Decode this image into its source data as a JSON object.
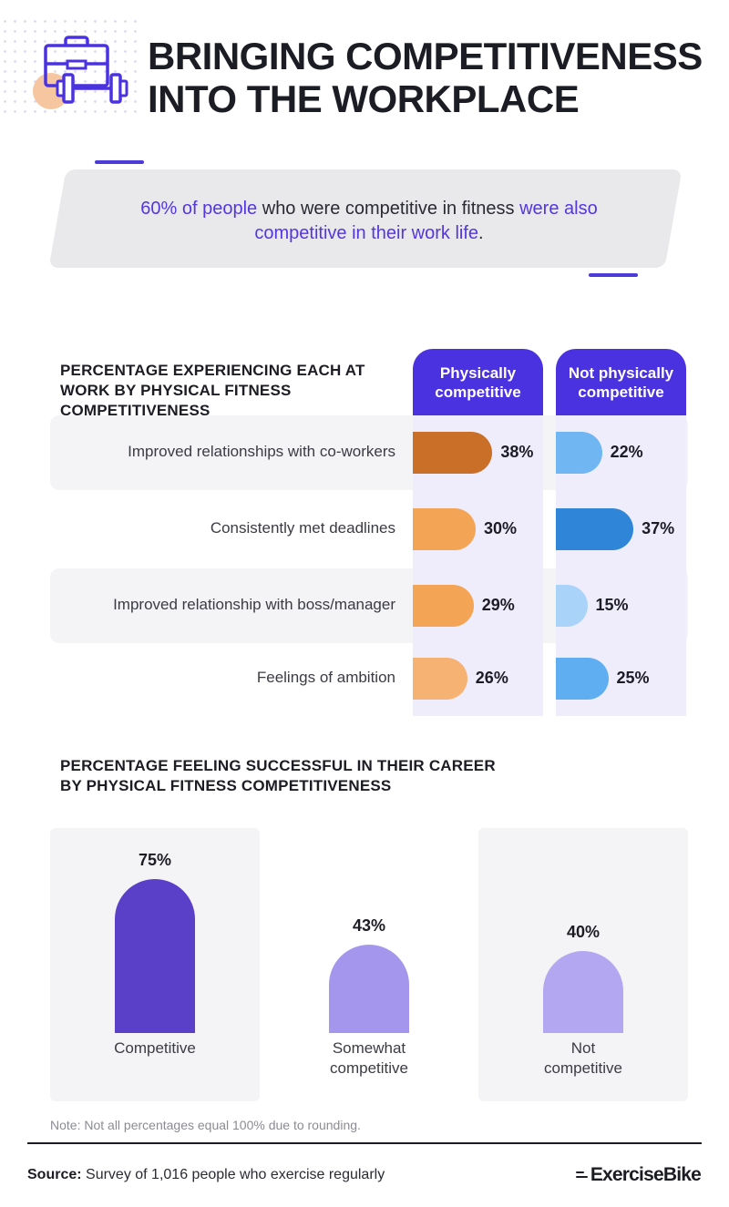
{
  "header": {
    "title": "Bringing Competitiveness Into the Workplace",
    "icon": "briefcase-dumbbell-icon",
    "accent_color": "#4a32e0"
  },
  "highlight": {
    "part1": "60% of people",
    "part2": " who were competitive in fitness ",
    "part3": "were also competitive in their work life",
    "part4": "."
  },
  "chart_data": [
    {
      "type": "bar",
      "orientation": "horizontal",
      "title": "Percentage experiencing each at work by physical fitness competitiveness",
      "categories": [
        "Improved relationships with co-workers",
        "Consistently met deadlines",
        "Improved relationship with boss/manager",
        "Feelings of ambition"
      ],
      "series": [
        {
          "name": "Physically competitive",
          "values": [
            38,
            30,
            29,
            26
          ],
          "colors": [
            "#c96f28",
            "#f3a455",
            "#f3a455",
            "#f6b273"
          ]
        },
        {
          "name": "Not physically competitive",
          "values": [
            22,
            37,
            15,
            25
          ],
          "colors": [
            "#6fb6f3",
            "#2f86d8",
            "#a9d3f8",
            "#5faef2"
          ]
        }
      ],
      "value_suffix": "%",
      "xlim": [
        0,
        40
      ]
    },
    {
      "type": "bar",
      "orientation": "vertical",
      "title": "Percentage feeling successful in their career by physical fitness competitiveness",
      "categories": [
        "Competitive",
        "Somewhat competitive",
        "Not competitive"
      ],
      "category_lines": [
        [
          "Competitive"
        ],
        [
          "Somewhat",
          "competitive"
        ],
        [
          "Not",
          "competitive"
        ]
      ],
      "values": [
        75,
        43,
        40
      ],
      "colors": [
        "#5a3fc9",
        "#a496ec",
        "#b2a7f0"
      ],
      "value_suffix": "%",
      "ylim": [
        0,
        100
      ]
    }
  ],
  "note": "Note: Not all percentages equal 100% due to rounding.",
  "footer": {
    "source_label": "Source:",
    "source_text": " Survey of 1,016 people who exercise regularly",
    "brand": "ExerciseBike"
  }
}
